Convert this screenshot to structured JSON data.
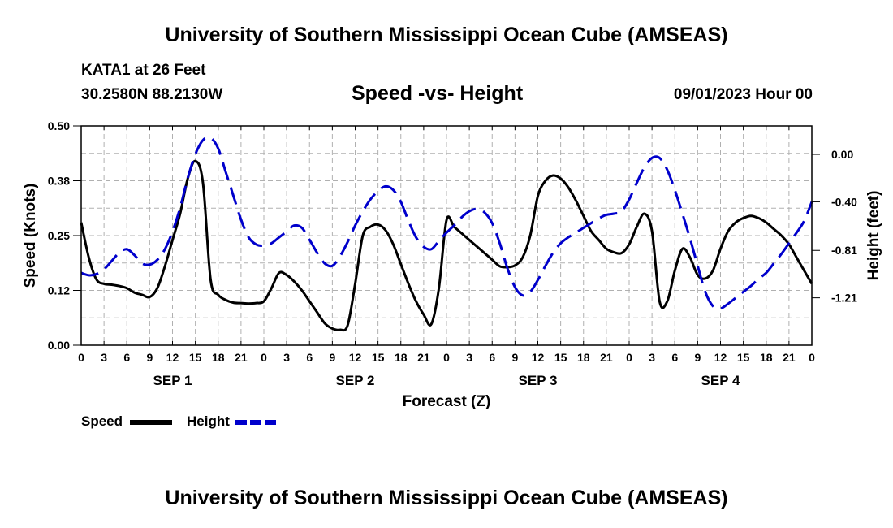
{
  "page": {
    "title_top": "University of Southern Mississippi Ocean Cube (AMSEAS)",
    "title_bottom": "University of Southern Mississippi Ocean Cube (AMSEAS)",
    "station": "KATA1 at 26 Feet",
    "coords": "30.2580N  88.2130W",
    "chart_title": "Speed -vs- Height",
    "datetime": "09/01/2023 Hour 00"
  },
  "legend": {
    "speed_label": "Speed",
    "height_label": "Height"
  },
  "colors": {
    "speed": "#000000",
    "height": "#0000cc",
    "grid": "#b0b0b0"
  },
  "chart_data": {
    "type": "line",
    "title": "Speed -vs- Height",
    "xlabel": "Forecast (Z)",
    "ylabel": "Speed (Knots)",
    "y2label": "Height (feet)",
    "xlim": [
      0,
      96
    ],
    "ylim": [
      0,
      0.5
    ],
    "y2lim": [
      -1.61,
      0.24
    ],
    "x_tick_labels": [
      "0",
      "3",
      "6",
      "9",
      "12",
      "15",
      "18",
      "21",
      "0",
      "3",
      "6",
      "9",
      "12",
      "15",
      "18",
      "21",
      "0",
      "3",
      "6",
      "9",
      "12",
      "15",
      "18",
      "21",
      "0",
      "3",
      "6",
      "9",
      "12",
      "15",
      "18",
      "21",
      "0"
    ],
    "day_labels": [
      {
        "x": 12,
        "label": "SEP 1"
      },
      {
        "x": 36,
        "label": "SEP 2"
      },
      {
        "x": 60,
        "label": "SEP 3"
      },
      {
        "x": 84,
        "label": "SEP 4"
      }
    ],
    "y_ticks": [
      0,
      0.125,
      0.25,
      0.375,
      0.5
    ],
    "y_tick_labels": [
      "0.00",
      "0.12",
      "0.25",
      "0.38",
      "0.50"
    ],
    "y2_ticks": [
      -1.21,
      -0.81,
      -0.4,
      0.0
    ],
    "y2_tick_labels": [
      "-1.21",
      "-0.81",
      "-0.40",
      "0.00"
    ],
    "series": [
      {
        "name": "Speed",
        "axis": "left",
        "style": "solid",
        "x": [
          0,
          1,
          2,
          3,
          4,
          5,
          6,
          7,
          8,
          9,
          10,
          11,
          12,
          13,
          14,
          15,
          16,
          17,
          18,
          19,
          20,
          21,
          22,
          23,
          24,
          25,
          26,
          27,
          28,
          29,
          30,
          31,
          32,
          33,
          34,
          35,
          36,
          37,
          38,
          39,
          40,
          41,
          42,
          43,
          44,
          45,
          46,
          47,
          48,
          49,
          50,
          51,
          52,
          53,
          54,
          55,
          56,
          57,
          58,
          59,
          60,
          61,
          62,
          63,
          64,
          65,
          66,
          67,
          68,
          69,
          70,
          71,
          72,
          73,
          74,
          75,
          76,
          77,
          78,
          79,
          80,
          81,
          82,
          83,
          84,
          85,
          86,
          87,
          88,
          89,
          90,
          91,
          92,
          93,
          94,
          95,
          96
        ],
        "values": [
          0.28,
          0.2,
          0.15,
          0.14,
          0.138,
          0.135,
          0.13,
          0.12,
          0.115,
          0.11,
          0.13,
          0.18,
          0.24,
          0.3,
          0.38,
          0.42,
          0.37,
          0.15,
          0.115,
          0.103,
          0.097,
          0.096,
          0.095,
          0.096,
          0.1,
          0.13,
          0.165,
          0.16,
          0.145,
          0.125,
          0.1,
          0.075,
          0.05,
          0.038,
          0.035,
          0.045,
          0.14,
          0.25,
          0.27,
          0.275,
          0.262,
          0.23,
          0.185,
          0.14,
          0.1,
          0.07,
          0.048,
          0.13,
          0.285,
          0.27,
          0.255,
          0.24,
          0.225,
          0.21,
          0.195,
          0.18,
          0.178,
          0.182,
          0.2,
          0.25,
          0.34,
          0.375,
          0.387,
          0.38,
          0.36,
          0.33,
          0.295,
          0.26,
          0.24,
          0.22,
          0.212,
          0.21,
          0.23,
          0.27,
          0.3,
          0.26,
          0.1,
          0.1,
          0.17,
          0.22,
          0.2,
          0.16,
          0.152,
          0.17,
          0.22,
          0.26,
          0.28,
          0.29,
          0.295,
          0.29,
          0.28,
          0.265,
          0.25,
          0.23,
          0.2,
          0.17,
          0.14
        ]
      },
      {
        "name": "Height",
        "axis": "right",
        "style": "dashed",
        "x": [
          0,
          1,
          2,
          3,
          4,
          5,
          6,
          7,
          8,
          9,
          10,
          11,
          12,
          13,
          14,
          15,
          16,
          17,
          18,
          19,
          20,
          21,
          22,
          23,
          24,
          25,
          26,
          27,
          28,
          29,
          30,
          31,
          32,
          33,
          34,
          35,
          36,
          37,
          38,
          39,
          40,
          41,
          42,
          43,
          44,
          45,
          46,
          47,
          48,
          49,
          50,
          51,
          52,
          53,
          54,
          55,
          56,
          57,
          58,
          59,
          60,
          61,
          62,
          63,
          64,
          65,
          66,
          67,
          68,
          69,
          70,
          71,
          72,
          73,
          74,
          75,
          76,
          77,
          78,
          79,
          80,
          81,
          82,
          83,
          84,
          85,
          86,
          87,
          88,
          89,
          90,
          91,
          92,
          93,
          94,
          95,
          96
        ],
        "values": [
          -1.0,
          -1.02,
          -1.01,
          -0.97,
          -0.9,
          -0.83,
          -0.8,
          -0.85,
          -0.92,
          -0.93,
          -0.89,
          -0.8,
          -0.65,
          -0.45,
          -0.2,
          0.0,
          0.12,
          0.14,
          0.05,
          -0.15,
          -0.35,
          -0.55,
          -0.7,
          -0.76,
          -0.77,
          -0.75,
          -0.7,
          -0.65,
          -0.6,
          -0.62,
          -0.72,
          -0.83,
          -0.92,
          -0.94,
          -0.86,
          -0.74,
          -0.6,
          -0.48,
          -0.38,
          -0.31,
          -0.27,
          -0.3,
          -0.4,
          -0.56,
          -0.7,
          -0.78,
          -0.8,
          -0.73,
          -0.66,
          -0.6,
          -0.53,
          -0.48,
          -0.46,
          -0.49,
          -0.58,
          -0.75,
          -0.96,
          -1.12,
          -1.19,
          -1.16,
          -1.06,
          -0.94,
          -0.83,
          -0.75,
          -0.7,
          -0.66,
          -0.62,
          -0.58,
          -0.54,
          -0.51,
          -0.5,
          -0.48,
          -0.38,
          -0.24,
          -0.11,
          -0.03,
          -0.03,
          -0.13,
          -0.3,
          -0.5,
          -0.71,
          -0.94,
          -1.16,
          -1.28,
          -1.3,
          -1.26,
          -1.21,
          -1.16,
          -1.11,
          -1.05,
          -1.0,
          -0.92,
          -0.84,
          -0.75,
          -0.66,
          -0.56,
          -0.4
        ]
      }
    ]
  }
}
